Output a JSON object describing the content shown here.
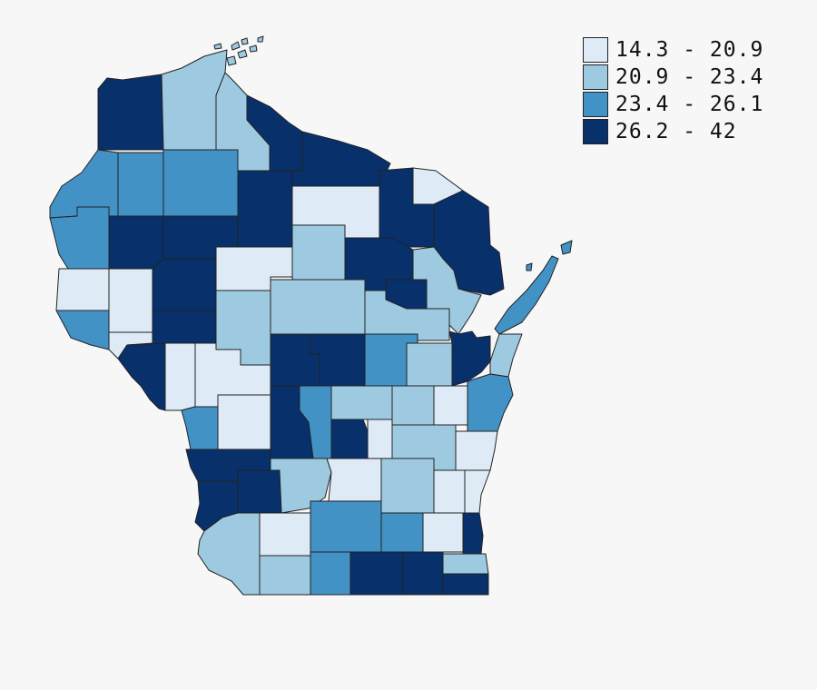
{
  "legend": [
    {
      "label": "14.3 - 20.9",
      "color": "#deebf7"
    },
    {
      "label": "20.9 - 23.4",
      "color": "#9ecae1"
    },
    {
      "label": "23.4 - 26.1",
      "color": "#4292c6"
    },
    {
      "label": "26.2 - 42",
      "color": "#08306b"
    }
  ],
  "counties": [
    {
      "id": "douglas",
      "class": 3
    },
    {
      "id": "bayfield",
      "class": 1
    },
    {
      "id": "ashland",
      "class": 1
    },
    {
      "id": "iron",
      "class": 3
    },
    {
      "id": "vilas",
      "class": 3
    },
    {
      "id": "florence",
      "class": 0
    },
    {
      "id": "burnett",
      "class": 2
    },
    {
      "id": "washburn",
      "class": 2
    },
    {
      "id": "sawyer",
      "class": 2
    },
    {
      "id": "price",
      "class": 3
    },
    {
      "id": "oneida",
      "class": 0
    },
    {
      "id": "forest",
      "class": 3
    },
    {
      "id": "marinette",
      "class": 3
    },
    {
      "id": "polk",
      "class": 2
    },
    {
      "id": "barron",
      "class": 3
    },
    {
      "id": "rusk",
      "class": 3
    },
    {
      "id": "taylor",
      "class": 0
    },
    {
      "id": "lincoln",
      "class": 1
    },
    {
      "id": "langlade",
      "class": 3
    },
    {
      "id": "menominee",
      "class": 3
    },
    {
      "id": "oconto",
      "class": 1
    },
    {
      "id": "door",
      "class": 2
    },
    {
      "id": "stcroix",
      "class": 0
    },
    {
      "id": "dunn",
      "class": 0
    },
    {
      "id": "chippewa",
      "class": 3
    },
    {
      "id": "clark",
      "class": 1
    },
    {
      "id": "marathon",
      "class": 1
    },
    {
      "id": "shawano",
      "class": 1
    },
    {
      "id": "pierce",
      "class": 2
    },
    {
      "id": "pepin",
      "class": 0
    },
    {
      "id": "eauclaire",
      "class": 3
    },
    {
      "id": "wood",
      "class": 3
    },
    {
      "id": "portage",
      "class": 3
    },
    {
      "id": "waupaca",
      "class": 2
    },
    {
      "id": "outagamie",
      "class": 1
    },
    {
      "id": "brown",
      "class": 3
    },
    {
      "id": "kewaunee",
      "class": 1
    },
    {
      "id": "buffalo",
      "class": 3
    },
    {
      "id": "trempealeau",
      "class": 0
    },
    {
      "id": "jackson",
      "class": 0
    },
    {
      "id": "juneau",
      "class": 3
    },
    {
      "id": "adams",
      "class": 2
    },
    {
      "id": "waushara",
      "class": 1
    },
    {
      "id": "winnebago",
      "class": 1
    },
    {
      "id": "calumet",
      "class": 0
    },
    {
      "id": "manitowoc",
      "class": 2
    },
    {
      "id": "lacrosse",
      "class": 2
    },
    {
      "id": "monroe",
      "class": 0
    },
    {
      "id": "marquette",
      "class": 3
    },
    {
      "id": "greenlake",
      "class": 0
    },
    {
      "id": "fonddulac",
      "class": 1
    },
    {
      "id": "sheboygan",
      "class": 0
    },
    {
      "id": "vernon",
      "class": 3
    },
    {
      "id": "sauk",
      "class": 1
    },
    {
      "id": "columbia",
      "class": 0
    },
    {
      "id": "dodge",
      "class": 1
    },
    {
      "id": "washington",
      "class": 0
    },
    {
      "id": "ozaukee",
      "class": 0
    },
    {
      "id": "crawford",
      "class": 3
    },
    {
      "id": "richland",
      "class": 3
    },
    {
      "id": "iowa",
      "class": 0
    },
    {
      "id": "dane",
      "class": 2
    },
    {
      "id": "jefferson",
      "class": 2
    },
    {
      "id": "waukesha",
      "class": 0
    },
    {
      "id": "milwaukee",
      "class": 3
    },
    {
      "id": "grant",
      "class": 1
    },
    {
      "id": "lafayette",
      "class": 1
    },
    {
      "id": "green",
      "class": 2
    },
    {
      "id": "rock",
      "class": 3
    },
    {
      "id": "walworth",
      "class": 3
    },
    {
      "id": "racine",
      "class": 1
    },
    {
      "id": "kenosha",
      "class": 3
    }
  ]
}
